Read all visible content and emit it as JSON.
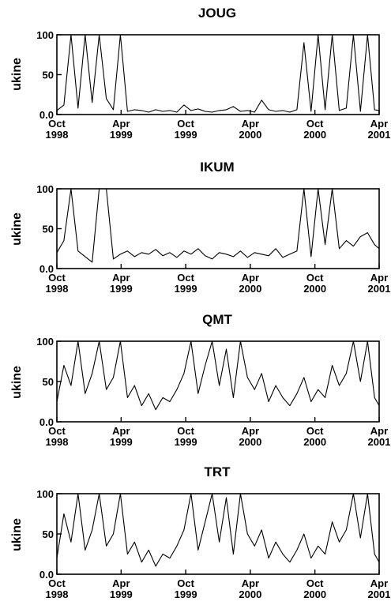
{
  "chart_data": [
    {
      "type": "line",
      "title": "JOUG",
      "ylabel": "ukine",
      "ylim": [
        0,
        100
      ],
      "yticks": [
        {
          "value": 0,
          "label": "0.0"
        },
        {
          "value": 50,
          "label": "50"
        },
        {
          "value": 100,
          "label": "100"
        }
      ],
      "xlim": [
        "1998-10-01",
        "2001-04-01"
      ],
      "xticks": [
        {
          "date": "1998-10-01",
          "month": "Oct",
          "year": "1998"
        },
        {
          "date": "1999-04-01",
          "month": "Apr",
          "year": "1999"
        },
        {
          "date": "1999-10-01",
          "month": "Oct",
          "year": "1999"
        },
        {
          "date": "2000-04-01",
          "month": "Apr",
          "year": "2000"
        },
        {
          "date": "2000-10-01",
          "month": "Oct",
          "year": "2000"
        },
        {
          "date": "2001-04-01",
          "month": "Apr",
          "year": "2001"
        }
      ],
      "x": [
        "1998-10-01",
        "1998-10-21",
        "1998-11-10",
        "1998-11-30",
        "1998-12-20",
        "1999-01-09",
        "1999-01-29",
        "1999-02-18",
        "1999-03-10",
        "1999-03-30",
        "1999-04-19",
        "1999-05-09",
        "1999-05-29",
        "1999-06-18",
        "1999-07-08",
        "1999-07-28",
        "1999-08-17",
        "1999-09-06",
        "1999-09-26",
        "1999-10-16",
        "1999-11-05",
        "1999-11-25",
        "1999-12-15",
        "2000-01-04",
        "2000-01-24",
        "2000-02-13",
        "2000-03-04",
        "2000-03-24",
        "2000-04-13",
        "2000-05-03",
        "2000-05-23",
        "2000-06-12",
        "2000-07-02",
        "2000-07-22",
        "2000-08-11",
        "2000-08-31",
        "2000-09-20",
        "2000-10-10",
        "2000-10-30",
        "2000-11-19",
        "2000-12-09",
        "2000-12-29",
        "2001-01-18",
        "2001-02-07",
        "2001-02-27",
        "2001-03-19",
        "2001-04-01"
      ],
      "values": [
        5,
        12,
        100,
        8,
        100,
        15,
        100,
        20,
        6,
        100,
        4,
        6,
        5,
        3,
        6,
        4,
        5,
        3,
        12,
        5,
        7,
        4,
        3,
        5,
        6,
        10,
        4,
        5,
        3,
        18,
        6,
        4,
        5,
        3,
        6,
        90,
        4,
        100,
        6,
        100,
        5,
        8,
        100,
        4,
        100,
        6,
        5
      ],
      "grid": false
    },
    {
      "type": "line",
      "title": "IKUM",
      "ylabel": "ukine",
      "ylim": [
        0,
        100
      ],
      "yticks": [
        {
          "value": 0,
          "label": "0.0"
        },
        {
          "value": 50,
          "label": "50"
        },
        {
          "value": 100,
          "label": "100"
        }
      ],
      "xlim": [
        "1998-10-01",
        "2001-04-01"
      ],
      "xticks": [
        {
          "date": "1998-10-01",
          "month": "Oct",
          "year": "1998"
        },
        {
          "date": "1999-04-01",
          "month": "Apr",
          "year": "1999"
        },
        {
          "date": "1999-10-01",
          "month": "Oct",
          "year": "1999"
        },
        {
          "date": "2000-04-01",
          "month": "Apr",
          "year": "2000"
        },
        {
          "date": "2000-10-01",
          "month": "Oct",
          "year": "2000"
        },
        {
          "date": "2001-04-01",
          "month": "Apr",
          "year": "2001"
        }
      ],
      "x": [
        "1998-10-01",
        "1998-10-21",
        "1998-11-10",
        "1998-11-30",
        "1998-12-20",
        "1999-01-09",
        "1999-01-29",
        "1999-02-18",
        "1999-03-10",
        "1999-03-30",
        "1999-04-19",
        "1999-05-09",
        "1999-05-29",
        "1999-06-18",
        "1999-07-08",
        "1999-07-28",
        "1999-08-17",
        "1999-09-06",
        "1999-09-26",
        "1999-10-16",
        "1999-11-05",
        "1999-11-25",
        "1999-12-15",
        "2000-01-04",
        "2000-01-24",
        "2000-02-13",
        "2000-03-04",
        "2000-03-24",
        "2000-04-13",
        "2000-05-03",
        "2000-05-23",
        "2000-06-12",
        "2000-07-02",
        "2000-07-22",
        "2000-08-11",
        "2000-08-31",
        "2000-09-20",
        "2000-10-10",
        "2000-10-30",
        "2000-11-19",
        "2000-12-09",
        "2000-12-29",
        "2001-01-18",
        "2001-02-07",
        "2001-02-27",
        "2001-03-19",
        "2001-04-01"
      ],
      "values": [
        20,
        35,
        100,
        22,
        15,
        8,
        100,
        100,
        12,
        18,
        22,
        15,
        20,
        18,
        24,
        16,
        20,
        14,
        22,
        18,
        25,
        16,
        12,
        20,
        18,
        15,
        22,
        14,
        20,
        18,
        16,
        25,
        14,
        18,
        22,
        100,
        15,
        100,
        30,
        100,
        25,
        35,
        28,
        40,
        45,
        30,
        25
      ],
      "grid": false
    },
    {
      "type": "line",
      "title": "QMT",
      "ylabel": "ukine",
      "ylim": [
        0,
        100
      ],
      "yticks": [
        {
          "value": 0,
          "label": "0.0"
        },
        {
          "value": 50,
          "label": "50"
        },
        {
          "value": 100,
          "label": "100"
        }
      ],
      "xlim": [
        "1998-10-01",
        "2001-04-01"
      ],
      "xticks": [
        {
          "date": "1998-10-01",
          "month": "Oct",
          "year": "1998"
        },
        {
          "date": "1999-04-01",
          "month": "Apr",
          "year": "1999"
        },
        {
          "date": "1999-10-01",
          "month": "Oct",
          "year": "1999"
        },
        {
          "date": "2000-04-01",
          "month": "Apr",
          "year": "2000"
        },
        {
          "date": "2000-10-01",
          "month": "Oct",
          "year": "2000"
        },
        {
          "date": "2001-04-01",
          "month": "Apr",
          "year": "2001"
        }
      ],
      "x": [
        "1998-10-01",
        "1998-10-21",
        "1998-11-10",
        "1998-11-30",
        "1998-12-20",
        "1999-01-09",
        "1999-01-29",
        "1999-02-18",
        "1999-03-10",
        "1999-03-30",
        "1999-04-19",
        "1999-05-09",
        "1999-05-29",
        "1999-06-18",
        "1999-07-08",
        "1999-07-28",
        "1999-08-17",
        "1999-09-06",
        "1999-09-26",
        "1999-10-16",
        "1999-11-05",
        "1999-11-25",
        "1999-12-15",
        "2000-01-04",
        "2000-01-24",
        "2000-02-13",
        "2000-03-04",
        "2000-03-24",
        "2000-04-13",
        "2000-05-03",
        "2000-05-23",
        "2000-06-12",
        "2000-07-02",
        "2000-07-22",
        "2000-08-11",
        "2000-08-31",
        "2000-09-20",
        "2000-10-10",
        "2000-10-30",
        "2000-11-19",
        "2000-12-09",
        "2000-12-29",
        "2001-01-18",
        "2001-02-07",
        "2001-02-27",
        "2001-03-19",
        "2001-04-01"
      ],
      "values": [
        25,
        70,
        45,
        100,
        35,
        60,
        100,
        40,
        55,
        100,
        30,
        45,
        20,
        35,
        15,
        30,
        25,
        40,
        60,
        100,
        35,
        70,
        100,
        45,
        90,
        30,
        100,
        55,
        40,
        60,
        25,
        45,
        30,
        20,
        35,
        55,
        25,
        40,
        30,
        70,
        45,
        60,
        100,
        50,
        100,
        30,
        20
      ],
      "grid": false
    },
    {
      "type": "line",
      "title": "TRT",
      "ylabel": "ukine",
      "ylim": [
        0,
        100
      ],
      "yticks": [
        {
          "value": 0,
          "label": "0.0"
        },
        {
          "value": 50,
          "label": "50"
        },
        {
          "value": 100,
          "label": "100"
        }
      ],
      "xlim": [
        "1998-10-01",
        "2001-04-01"
      ],
      "xticks": [
        {
          "date": "1998-10-01",
          "month": "Oct",
          "year": "1998"
        },
        {
          "date": "1999-04-01",
          "month": "Apr",
          "year": "1999"
        },
        {
          "date": "1999-10-01",
          "month": "Oct",
          "year": "1999"
        },
        {
          "date": "2000-04-01",
          "month": "Apr",
          "year": "2000"
        },
        {
          "date": "2000-10-01",
          "month": "Oct",
          "year": "2000"
        },
        {
          "date": "2001-04-01",
          "month": "Apr",
          "year": "2001"
        }
      ],
      "x": [
        "1998-10-01",
        "1998-10-21",
        "1998-11-10",
        "1998-11-30",
        "1998-12-20",
        "1999-01-09",
        "1999-01-29",
        "1999-02-18",
        "1999-03-10",
        "1999-03-30",
        "1999-04-19",
        "1999-05-09",
        "1999-05-29",
        "1999-06-18",
        "1999-07-08",
        "1999-07-28",
        "1999-08-17",
        "1999-09-06",
        "1999-09-26",
        "1999-10-16",
        "1999-11-05",
        "1999-11-25",
        "1999-12-15",
        "2000-01-04",
        "2000-01-24",
        "2000-02-13",
        "2000-03-04",
        "2000-03-24",
        "2000-04-13",
        "2000-05-03",
        "2000-05-23",
        "2000-06-12",
        "2000-07-02",
        "2000-07-22",
        "2000-08-11",
        "2000-08-31",
        "2000-09-20",
        "2000-10-10",
        "2000-10-30",
        "2000-11-19",
        "2000-12-09",
        "2000-12-29",
        "2001-01-18",
        "2001-02-07",
        "2001-02-27",
        "2001-03-19",
        "2001-04-01"
      ],
      "values": [
        20,
        75,
        40,
        100,
        30,
        55,
        100,
        35,
        50,
        100,
        25,
        40,
        15,
        30,
        10,
        25,
        20,
        35,
        55,
        100,
        30,
        65,
        100,
        40,
        95,
        25,
        100,
        50,
        35,
        55,
        20,
        40,
        25,
        15,
        30,
        50,
        20,
        35,
        25,
        65,
        40,
        55,
        100,
        45,
        100,
        25,
        15
      ],
      "grid": false
    }
  ]
}
